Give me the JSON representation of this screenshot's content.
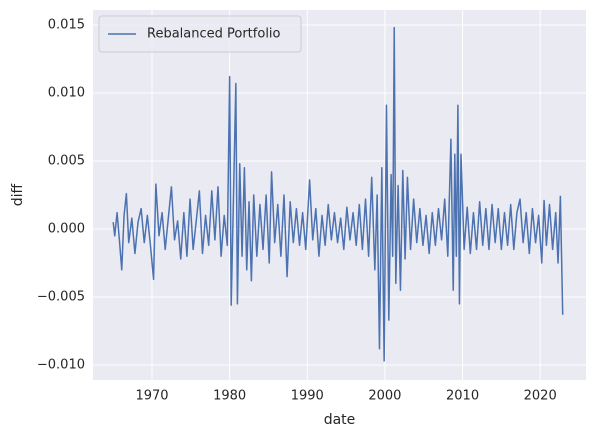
{
  "chart_data": {
    "type": "line",
    "xlabel": "date",
    "ylabel": "diff",
    "legend": "upper left",
    "grid": true,
    "xlim": [
      1962.4,
      2025.9
    ],
    "xticks": [
      1970,
      1980,
      1990,
      2000,
      2010,
      2020
    ],
    "ylim": [
      -0.0111,
      0.0161
    ],
    "yticks": [
      {
        "value": -0.01,
        "label": "−0.010"
      },
      {
        "value": -0.005,
        "label": "−0.005"
      },
      {
        "value": 0,
        "label": "0.000"
      },
      {
        "value": 0.005,
        "label": "0.005"
      },
      {
        "value": 0.01,
        "label": "0.010"
      },
      {
        "value": 0.015,
        "label": "0.015"
      }
    ],
    "x": [
      1965.0,
      1965.2,
      1965.5,
      1965.8,
      1966.1,
      1966.4,
      1966.7,
      1967.0,
      1967.4,
      1967.8,
      1968.2,
      1968.6,
      1969.0,
      1969.4,
      1969.8,
      1970.2,
      1970.5,
      1970.9,
      1971.3,
      1971.7,
      1972.1,
      1972.5,
      1972.9,
      1973.3,
      1973.7,
      1974.1,
      1974.5,
      1974.9,
      1975.3,
      1975.7,
      1976.1,
      1976.5,
      1976.9,
      1977.3,
      1977.7,
      1978.1,
      1978.5,
      1978.9,
      1979.3,
      1979.7,
      1980.0,
      1980.2,
      1980.5,
      1980.8,
      1981.0,
      1981.3,
      1981.6,
      1981.9,
      1982.2,
      1982.5,
      1982.8,
      1983.1,
      1983.5,
      1983.9,
      1984.3,
      1984.7,
      1985.1,
      1985.4,
      1985.8,
      1986.2,
      1986.6,
      1987.0,
      1987.4,
      1987.8,
      1988.2,
      1988.6,
      1989.0,
      1989.4,
      1989.8,
      1990.3,
      1990.7,
      1991.1,
      1991.5,
      1991.9,
      1992.3,
      1992.7,
      1993.1,
      1993.5,
      1993.9,
      1994.3,
      1994.7,
      1995.1,
      1995.5,
      1995.9,
      1996.3,
      1996.7,
      1997.1,
      1997.5,
      1997.9,
      1998.3,
      1998.7,
      1999.0,
      1999.3,
      1999.6,
      1999.9,
      2000.2,
      2000.5,
      2000.8,
      2001.0,
      2001.2,
      2001.4,
      2001.7,
      2002.0,
      2002.3,
      2002.6,
      2002.9,
      2003.3,
      2003.7,
      2004.1,
      2004.5,
      2004.9,
      2005.3,
      2005.7,
      2006.1,
      2006.5,
      2006.9,
      2007.3,
      2007.7,
      2008.1,
      2008.5,
      2008.8,
      2009.0,
      2009.2,
      2009.4,
      2009.6,
      2009.8,
      2010.2,
      2010.6,
      2011.0,
      2011.4,
      2011.8,
      2012.2,
      2012.6,
      2013.0,
      2013.4,
      2013.8,
      2014.2,
      2014.6,
      2015.0,
      2015.4,
      2015.8,
      2016.2,
      2016.6,
      2017.0,
      2017.4,
      2017.8,
      2018.2,
      2018.6,
      2019.0,
      2019.4,
      2019.8,
      2020.2,
      2020.5,
      2020.8,
      2021.2,
      2021.6,
      2022.0,
      2022.3,
      2022.6,
      2022.9
    ],
    "series": [
      {
        "name": "Rebalanced Portfolio",
        "color": "#4c72b0",
        "values": [
          0.0005,
          -0.0005,
          0.0012,
          -0.0008,
          -0.003,
          0.001,
          0.0026,
          -0.001,
          0.0008,
          -0.0018,
          0.0005,
          0.0015,
          -0.001,
          0.001,
          -0.0012,
          -0.0037,
          0.0033,
          -0.0005,
          0.0012,
          -0.0015,
          0.0008,
          0.0031,
          -0.0008,
          0.0006,
          -0.0022,
          0.0012,
          -0.002,
          0.0022,
          -0.0015,
          0.0006,
          0.0028,
          -0.0018,
          0.001,
          -0.0012,
          0.0028,
          -0.0008,
          0.0031,
          -0.002,
          0.001,
          -0.0012,
          0.0112,
          -0.0056,
          0.0025,
          0.0107,
          -0.0055,
          0.0048,
          -0.002,
          0.0045,
          -0.003,
          0.002,
          -0.0038,
          0.0025,
          -0.002,
          0.0018,
          -0.0015,
          0.0025,
          -0.0025,
          0.0042,
          -0.001,
          0.0018,
          -0.002,
          0.0025,
          -0.0035,
          0.002,
          -0.001,
          0.0015,
          -0.0012,
          0.0012,
          -0.0015,
          0.0036,
          -0.0008,
          0.0015,
          -0.002,
          0.001,
          -0.0012,
          0.0018,
          -0.0008,
          0.0012,
          -0.001,
          0.0008,
          -0.0015,
          0.0016,
          -0.0008,
          0.0012,
          -0.0012,
          0.0018,
          -0.0015,
          0.0022,
          -0.002,
          0.0038,
          -0.003,
          0.0025,
          -0.0088,
          0.0045,
          -0.0097,
          0.0091,
          -0.0067,
          0.004,
          -0.002,
          0.0148,
          -0.004,
          0.0032,
          -0.0045,
          0.0043,
          -0.0022,
          0.0038,
          -0.0015,
          0.0022,
          -0.001,
          0.0015,
          -0.0012,
          0.001,
          -0.0018,
          0.0012,
          -0.0012,
          0.0015,
          -0.0008,
          0.0022,
          -0.002,
          0.0066,
          -0.0045,
          0.0055,
          -0.002,
          0.0091,
          -0.0055,
          0.0055,
          -0.0015,
          0.0016,
          -0.0018,
          0.0012,
          -0.0015,
          0.002,
          -0.0012,
          0.0015,
          -0.0015,
          0.0018,
          -0.001,
          0.0015,
          -0.0015,
          0.0012,
          -0.0012,
          0.0018,
          -0.0015,
          0.0012,
          0.0022,
          -0.001,
          0.0012,
          -0.0018,
          0.0015,
          -0.001,
          0.001,
          -0.0025,
          0.0021,
          -0.0012,
          0.0018,
          -0.0015,
          0.0012,
          -0.0025,
          0.0024,
          -0.0063
        ]
      }
    ]
  }
}
